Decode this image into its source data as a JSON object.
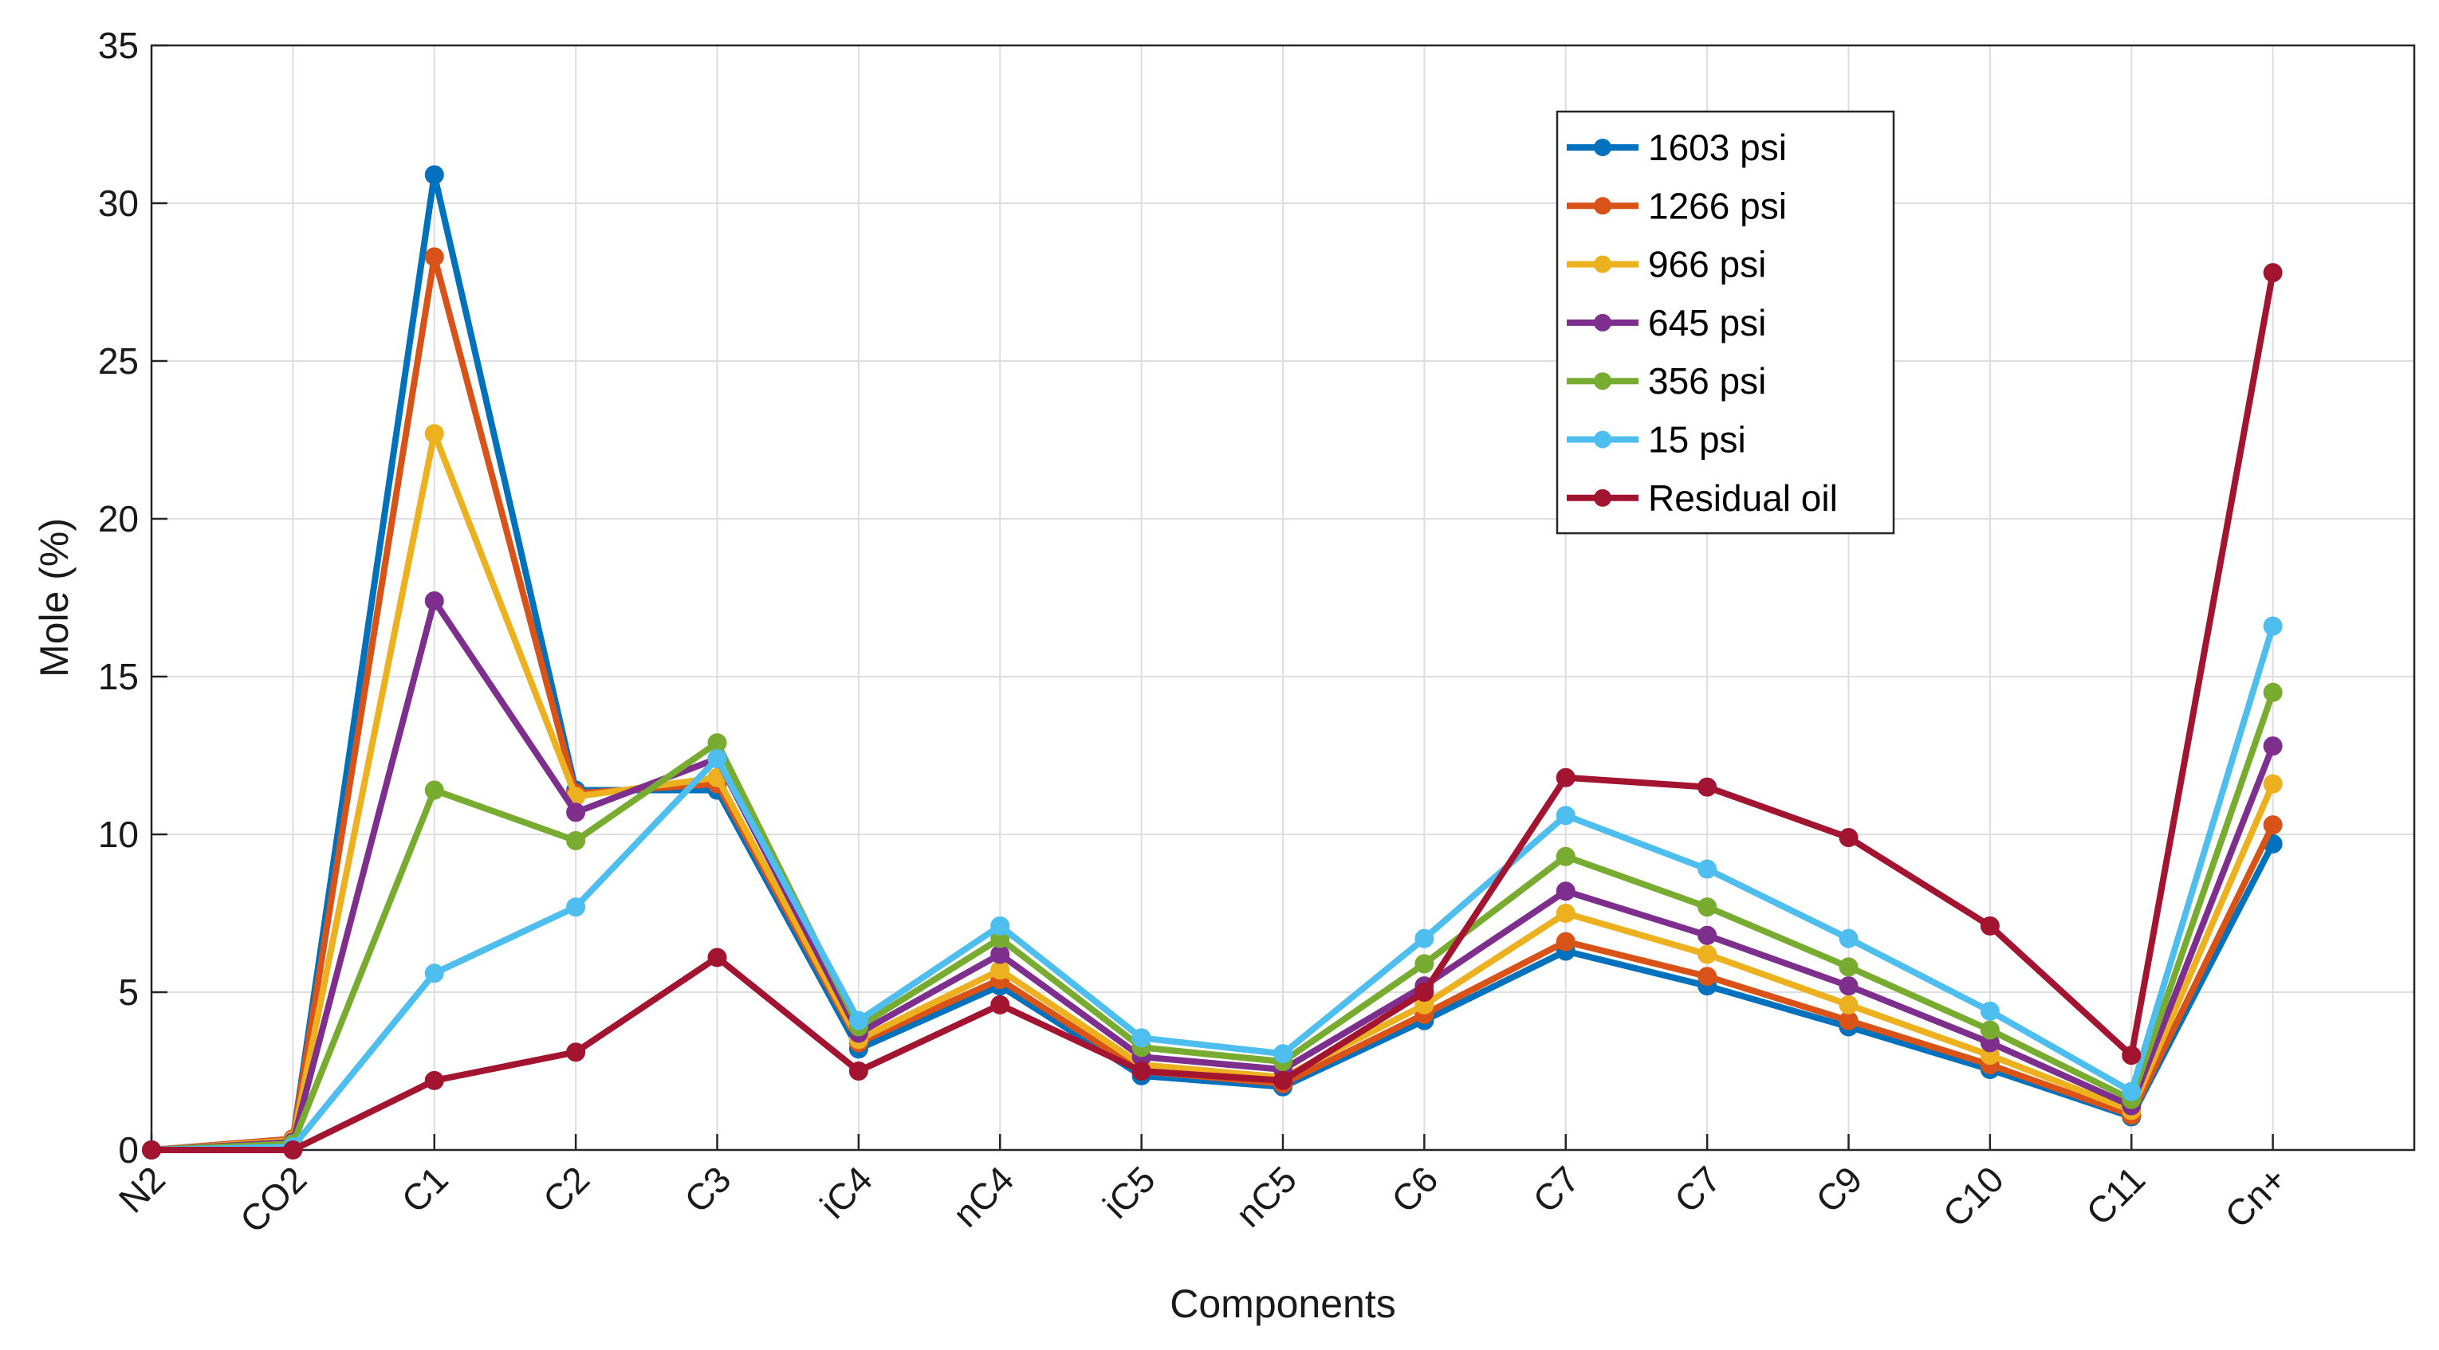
{
  "chart_data": {
    "type": "line",
    "title": "",
    "xlabel": "Components",
    "ylabel": "Mole (%)",
    "ylim": [
      0,
      35
    ],
    "yticks": [
      0,
      5,
      10,
      15,
      20,
      25,
      30,
      35
    ],
    "grid": true,
    "legend_position": "top-right (inside plot, center-right)",
    "categories": [
      "N2",
      "CO2",
      "C1",
      "C2",
      "C3",
      "iC4",
      "nC4",
      "iC5",
      "nC5",
      "C6",
      "C7",
      "C7",
      "C9",
      "C10",
      "C11",
      "Cn+"
    ],
    "series": [
      {
        "name": "1603 psi",
        "color": "#0072BD",
        "values": [
          0.0,
          0.35,
          30.9,
          11.4,
          11.4,
          3.2,
          5.2,
          2.35,
          2.0,
          4.1,
          6.3,
          5.2,
          3.9,
          2.55,
          1.05,
          9.7
        ]
      },
      {
        "name": "1266 psi",
        "color": "#D95319",
        "values": [
          0.0,
          0.35,
          28.3,
          11.3,
          11.6,
          3.4,
          5.4,
          2.5,
          2.1,
          4.3,
          6.6,
          5.5,
          4.1,
          2.7,
          1.1,
          10.3
        ]
      },
      {
        "name": "966 psi",
        "color": "#EDB120",
        "values": [
          0.0,
          0.3,
          22.7,
          11.2,
          11.8,
          3.5,
          5.7,
          2.7,
          2.3,
          4.6,
          7.5,
          6.2,
          4.6,
          3.0,
          1.25,
          11.6
        ]
      },
      {
        "name": "645 psi",
        "color": "#7E2F8E",
        "values": [
          0.0,
          0.25,
          17.4,
          10.7,
          12.4,
          3.7,
          6.2,
          2.95,
          2.55,
          5.2,
          8.2,
          6.8,
          5.2,
          3.4,
          1.4,
          12.8
        ]
      },
      {
        "name": "356 psi",
        "color": "#77AC30",
        "values": [
          0.0,
          0.2,
          11.4,
          9.8,
          12.9,
          3.9,
          6.7,
          3.25,
          2.8,
          5.9,
          9.3,
          7.7,
          5.8,
          3.8,
          1.6,
          14.5
        ]
      },
      {
        "name": "15 psi",
        "color": "#4DBEEE",
        "values": [
          0.0,
          0.1,
          5.6,
          7.7,
          12.4,
          4.1,
          7.1,
          3.55,
          3.05,
          6.7,
          10.6,
          8.9,
          6.7,
          4.4,
          1.85,
          16.6
        ]
      },
      {
        "name": "Residual oil",
        "color": "#A2142F",
        "values": [
          0.0,
          0.0,
          2.2,
          3.1,
          6.1,
          2.5,
          4.6,
          2.5,
          2.2,
          5.0,
          11.8,
          11.5,
          9.9,
          7.1,
          3.0,
          27.8
        ]
      }
    ]
  }
}
